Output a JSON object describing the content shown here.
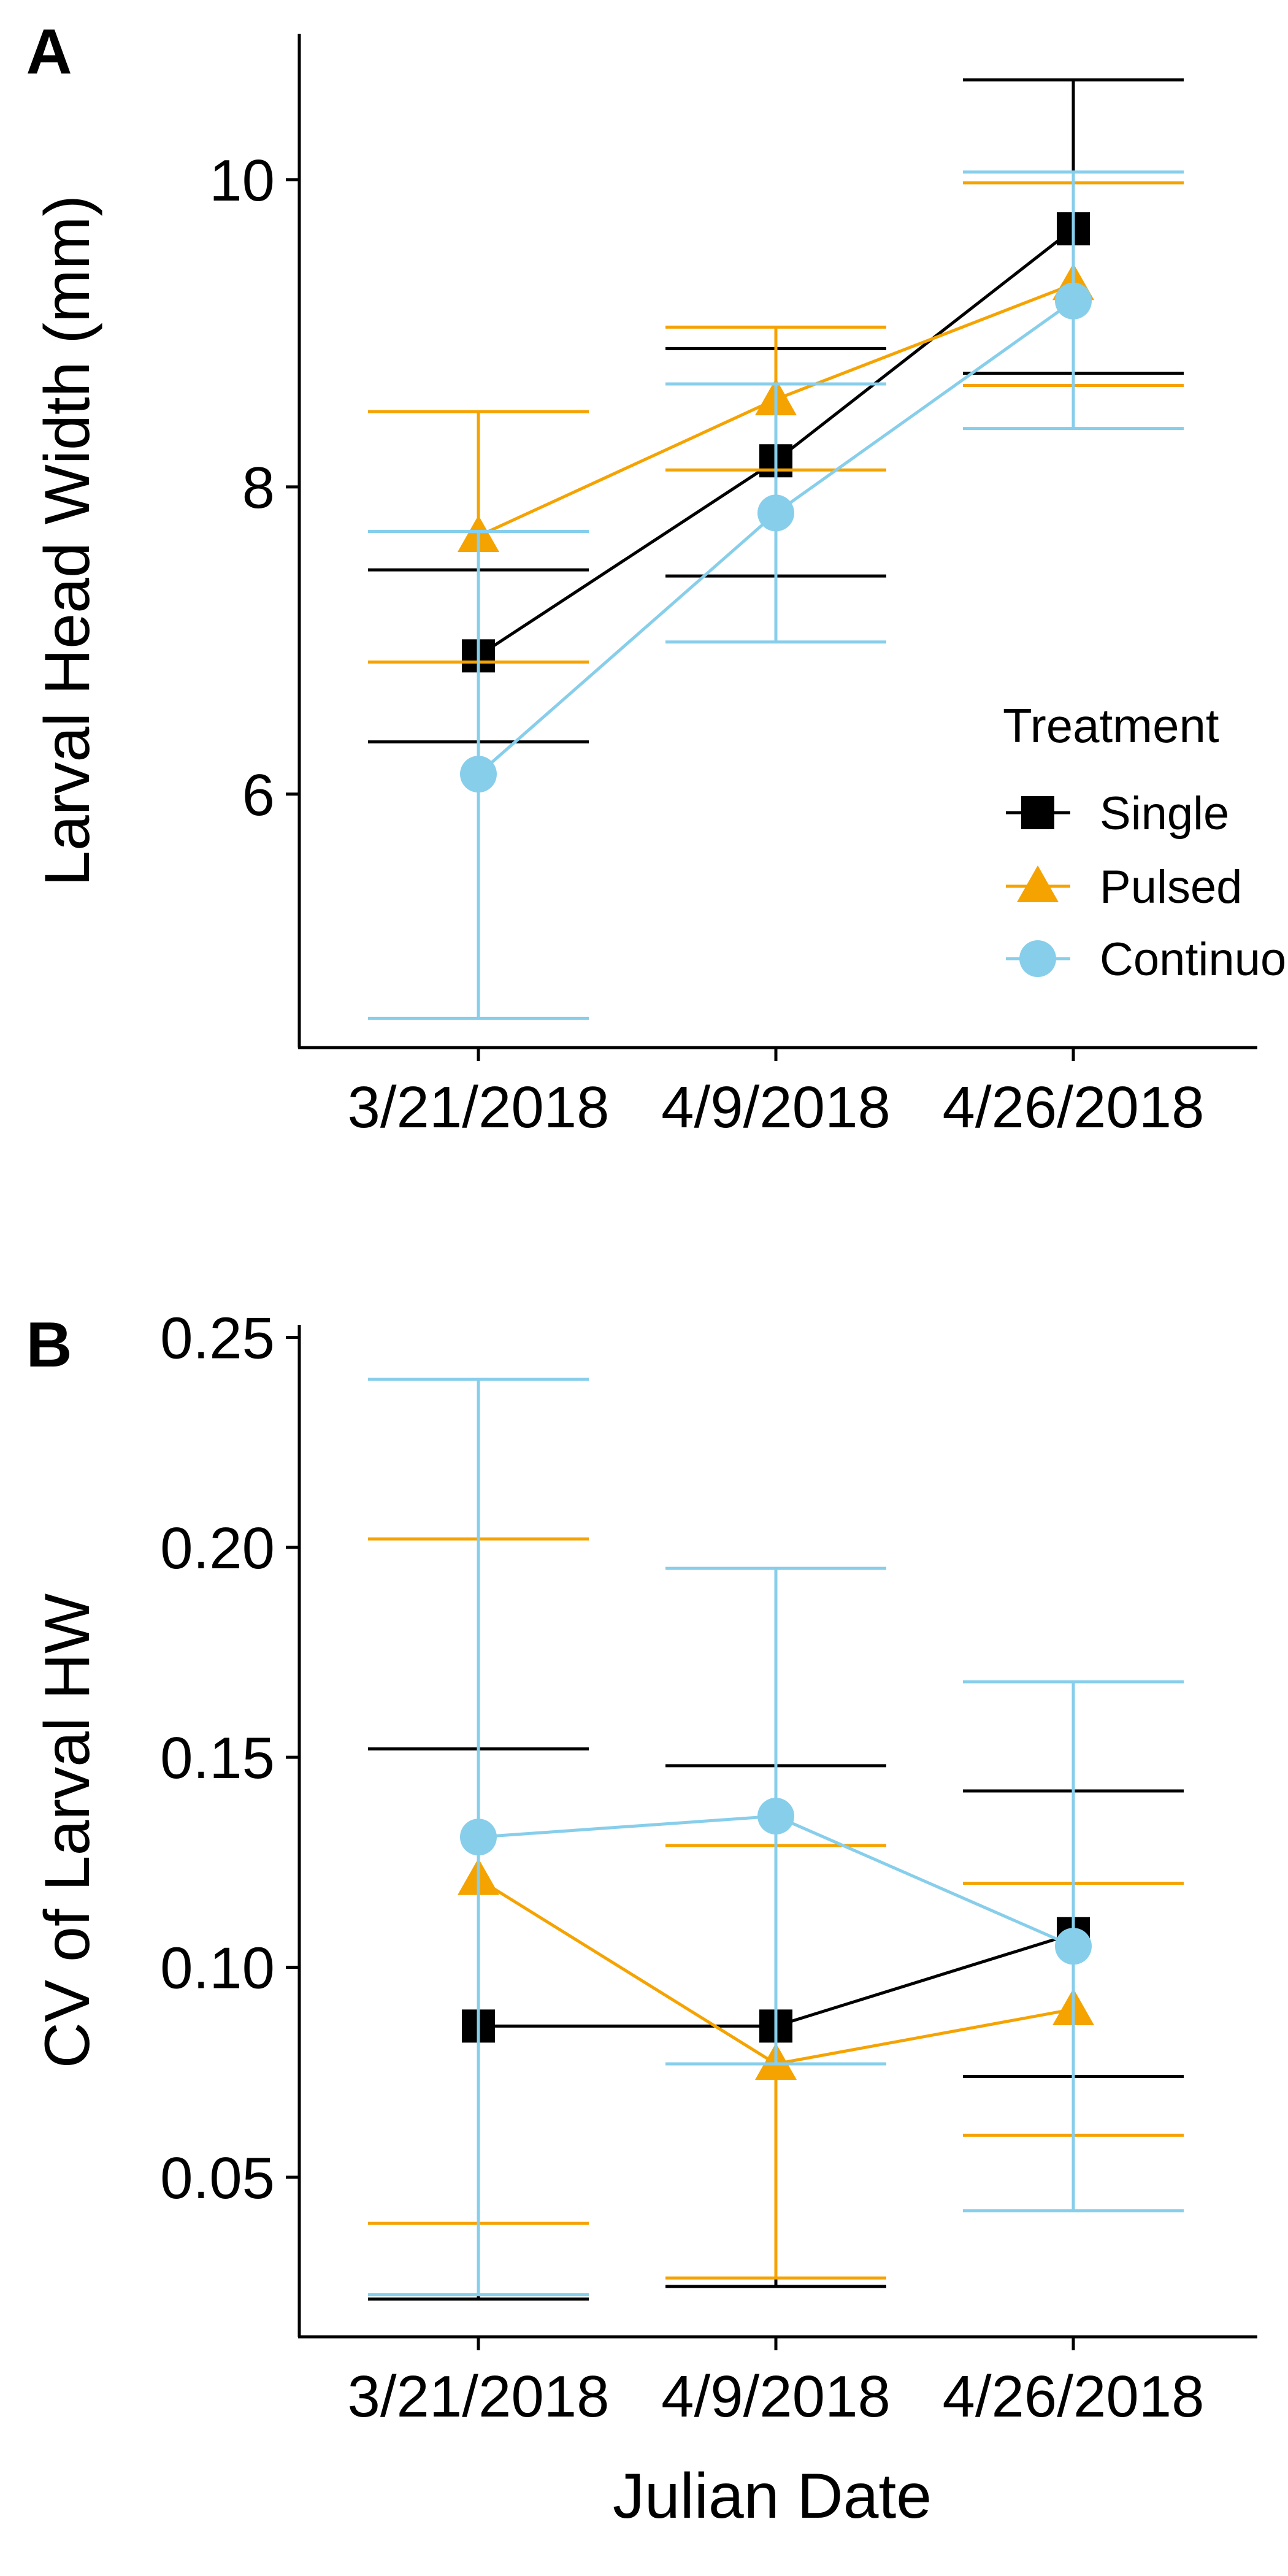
{
  "chart_data": [
    {
      "panel_label": "A",
      "type": "line",
      "title": "",
      "xlabel": "",
      "ylabel": "Larval Head Width (mm)",
      "categories": [
        "3/21/2018",
        "4/9/2018",
        "4/26/2018"
      ],
      "ylim": [
        4.35,
        10.95
      ],
      "yticks": [
        6,
        8,
        10
      ],
      "ytick_labels": [
        "6",
        "8",
        "10"
      ],
      "grid": false,
      "legend": "right",
      "series": [
        {
          "name": "Single",
          "color": "#000000",
          "marker": "square",
          "values": [
            6.9,
            8.17,
            9.68
          ],
          "lower": [
            6.34,
            7.42,
            8.74
          ],
          "upper": [
            7.46,
            8.9,
            10.65
          ]
        },
        {
          "name": "Pulsed",
          "color": "#F5A300",
          "marker": "triangle",
          "values": [
            7.68,
            8.57,
            9.32
          ],
          "lower": [
            6.86,
            8.11,
            8.66
          ],
          "upper": [
            8.49,
            9.04,
            9.98
          ]
        },
        {
          "name": "Continuous",
          "color": "#87CEEB",
          "marker": "circle",
          "values": [
            6.13,
            7.83,
            9.21
          ],
          "lower": [
            4.54,
            6.99,
            8.38
          ],
          "upper": [
            7.71,
            8.67,
            10.05
          ]
        }
      ]
    },
    {
      "panel_label": "B",
      "type": "line",
      "title": "",
      "xlabel": "Julian Date",
      "ylabel": "CV of Larval HW",
      "categories": [
        "3/21/2018",
        "4/9/2018",
        "4/26/2018"
      ],
      "ylim": [
        0.012,
        0.253
      ],
      "yticks": [
        0.05,
        0.1,
        0.15,
        0.2,
        0.25
      ],
      "ytick_labels": [
        "0.05",
        "0.10",
        "0.15",
        "0.20",
        "0.25"
      ],
      "grid": false,
      "legend": "none",
      "series": [
        {
          "name": "Single",
          "color": "#000000",
          "marker": "square",
          "values": [
            0.086,
            0.086,
            0.108
          ],
          "lower": [
            0.021,
            0.024,
            0.074
          ],
          "upper": [
            0.152,
            0.148,
            0.142
          ]
        },
        {
          "name": "Pulsed",
          "color": "#F5A300",
          "marker": "triangle",
          "values": [
            0.121,
            0.077,
            0.09
          ],
          "lower": [
            0.039,
            0.026,
            0.06
          ],
          "upper": [
            0.202,
            0.129,
            0.12
          ]
        },
        {
          "name": "Continuous",
          "color": "#87CEEB",
          "marker": "circle",
          "values": [
            0.131,
            0.136,
            0.105
          ],
          "lower": [
            0.022,
            0.077,
            0.042
          ],
          "upper": [
            0.24,
            0.195,
            0.168
          ]
        }
      ]
    }
  ],
  "legend": {
    "title": "Treatment",
    "items": [
      "Single",
      "Pulsed",
      "Continuous"
    ]
  }
}
